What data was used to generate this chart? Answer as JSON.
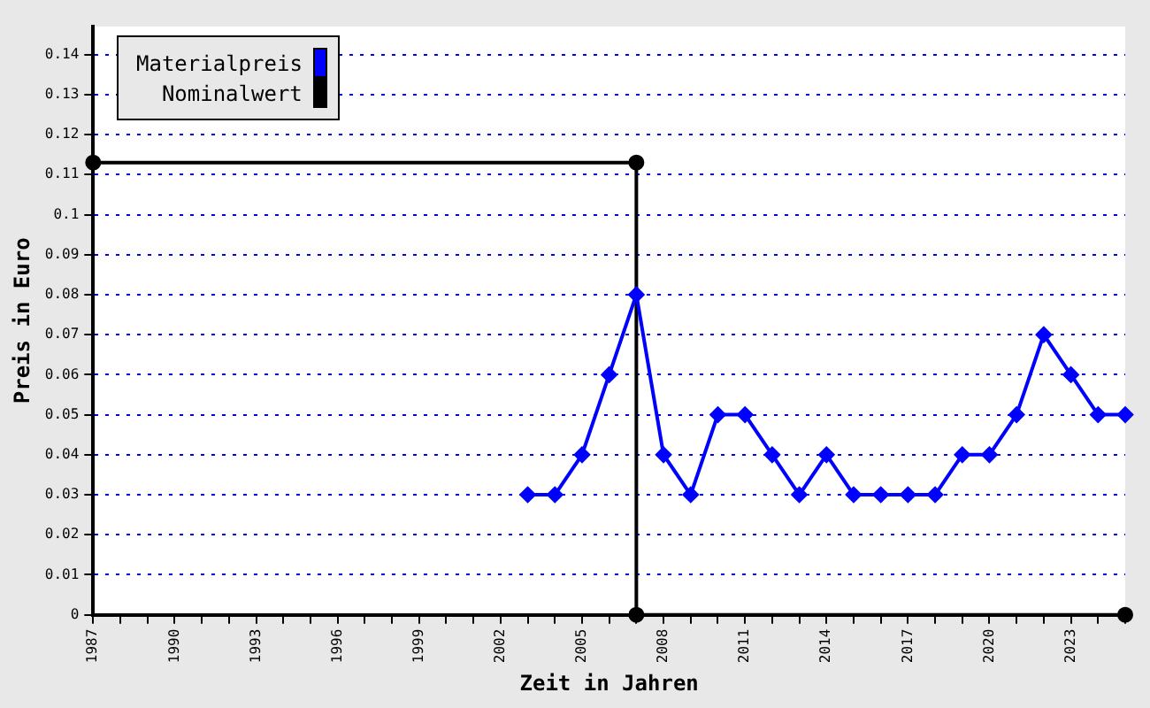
{
  "chart_data": {
    "type": "line",
    "xlabel": "Zeit in Jahren",
    "ylabel": "Preis in Euro",
    "xlim": [
      1987,
      2025
    ],
    "xticks": [
      1987,
      {
        "value": 1988,
        "label": null
      },
      {
        "value": 1989,
        "label": null
      },
      1990,
      {
        "value": 1991,
        "label": null
      },
      {
        "value": 1992,
        "label": null
      },
      1993,
      {
        "value": 1994,
        "label": null
      },
      {
        "value": 1995,
        "label": null
      },
      1996,
      {
        "value": 1997,
        "label": null
      },
      {
        "value": 1998,
        "label": null
      },
      1999,
      {
        "value": 2000,
        "label": null
      },
      {
        "value": 2001,
        "label": null
      },
      2002,
      {
        "value": 2003,
        "label": null
      },
      {
        "value": 2004,
        "label": null
      },
      2005,
      {
        "value": 2006,
        "label": null
      },
      {
        "value": 2007,
        "label": null
      },
      2008,
      {
        "value": 2009,
        "label": null
      },
      {
        "value": 2010,
        "label": null
      },
      2011,
      {
        "value": 2012,
        "label": null
      },
      {
        "value": 2013,
        "label": null
      },
      2014,
      {
        "value": 2015,
        "label": null
      },
      {
        "value": 2016,
        "label": null
      },
      2017,
      {
        "value": 2018,
        "label": null
      },
      {
        "value": 2019,
        "label": null
      },
      2020,
      {
        "value": 2021,
        "label": null
      },
      {
        "value": 2022,
        "label": null
      },
      2023,
      {
        "value": 2024,
        "label": null
      },
      {
        "value": 2025,
        "label": null
      }
    ],
    "ylim": [
      0,
      0.147
    ],
    "yticks": [
      0,
      0.01,
      0.02,
      0.03,
      0.04,
      0.05,
      0.06,
      0.07,
      0.08,
      0.09,
      0.1,
      0.11,
      0.12,
      0.13,
      0.14
    ],
    "grid": "y",
    "legend": "top left",
    "series": [
      {
        "name": "Materialpreis",
        "color": "#0000ff",
        "marker": "diamond",
        "x": [
          2003,
          2004,
          2005,
          2006,
          2007,
          2008,
          2009,
          2010,
          2011,
          2012,
          2013,
          2014,
          2015,
          2016,
          2017,
          2018,
          2019,
          2020,
          2021,
          2022,
          2023,
          2024,
          2025
        ],
        "values": [
          0.03,
          0.03,
          0.04,
          0.06,
          0.08,
          0.04,
          0.03,
          0.05,
          0.05,
          0.04,
          0.03,
          0.04,
          0.03,
          0.03,
          0.03,
          0.03,
          0.04,
          0.04,
          0.05,
          0.07,
          0.06,
          0.05,
          0.05
        ]
      },
      {
        "name": "Nominalwert",
        "color": "#000000",
        "marker": "circle",
        "x": [
          1987,
          2007,
          2007,
          2025
        ],
        "values": [
          0.113,
          0.113,
          0,
          0
        ]
      }
    ]
  }
}
